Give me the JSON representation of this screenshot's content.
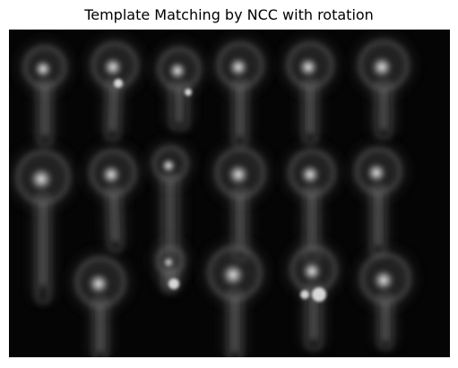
{
  "figure": {
    "title": "Template Matching by NCC with rotation"
  },
  "image": {
    "description_visible": "grayscale NCC response map",
    "background_color": "#050505",
    "highlight_color": "#e8e8e8",
    "object_count": 17
  }
}
